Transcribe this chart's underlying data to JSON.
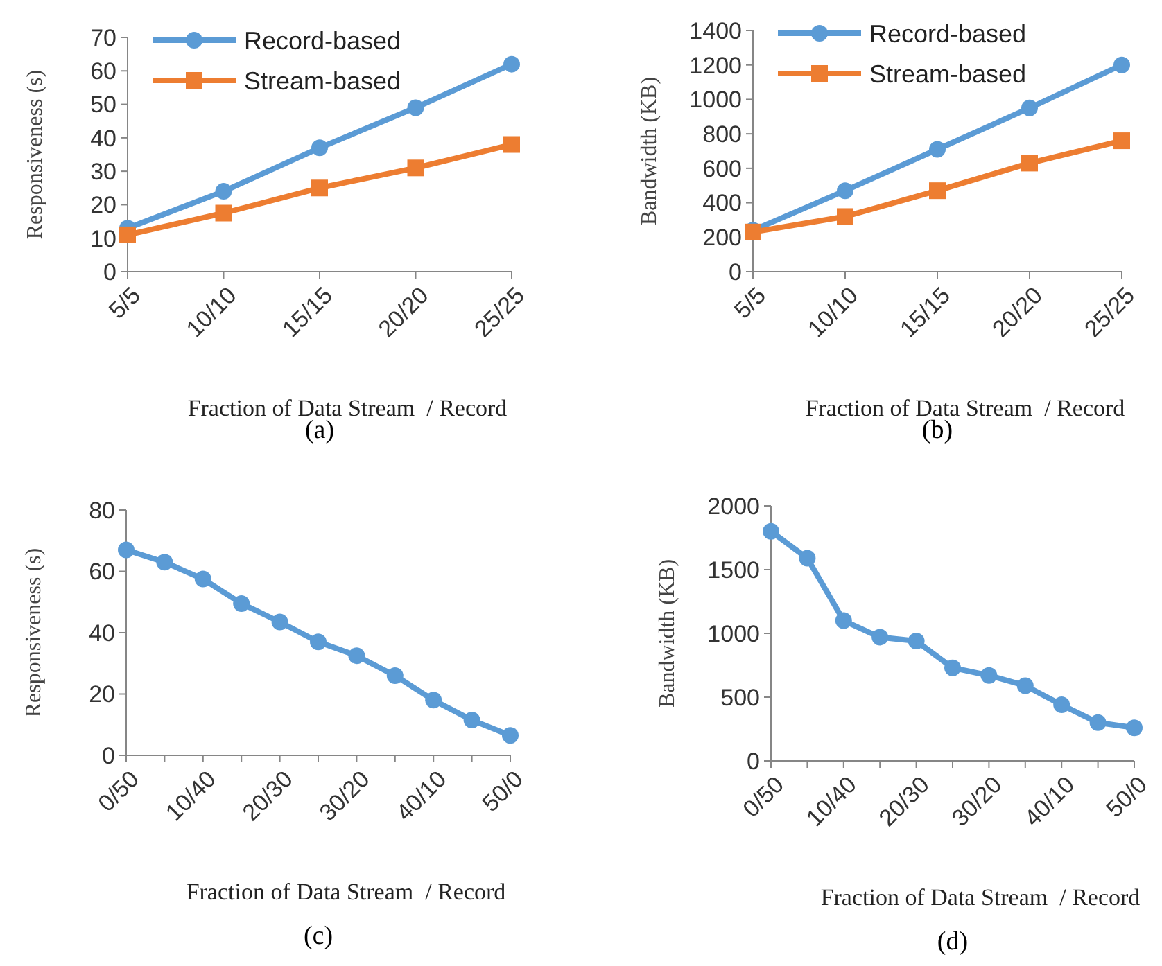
{
  "chart_data": [
    {
      "type": "line",
      "categories": [
        "5/5",
        "10/10",
        "15/15",
        "20/20",
        "25/25"
      ],
      "xlabel": "Fraction of Data Stream  / Record",
      "ylabel": "Responsiveness (s)",
      "ylim": [
        0,
        70
      ],
      "yticks": [
        0,
        10,
        20,
        30,
        40,
        50,
        60,
        70
      ],
      "grid": false,
      "legend": "top left",
      "annotations": [
        "(a)"
      ],
      "series": [
        {
          "name": "Record-based",
          "color": "#5b9bd5",
          "marker": "circle",
          "values": [
            13,
            24,
            37,
            49,
            62
          ]
        },
        {
          "name": "Stream-based",
          "color": "#ed7d31",
          "marker": "square",
          "values": [
            11,
            17.5,
            25,
            31,
            38
          ]
        }
      ]
    },
    {
      "type": "line",
      "categories": [
        "5/5",
        "10/10",
        "15/15",
        "20/20",
        "25/25"
      ],
      "xlabel": "Fraction of Data Stream  / Record",
      "ylabel": "Bandwidth (KB)",
      "ylim": [
        0,
        1400
      ],
      "yticks": [
        0,
        200,
        400,
        600,
        800,
        1000,
        1200,
        1400
      ],
      "grid": false,
      "legend": "top left",
      "annotations": [
        "(b)"
      ],
      "series": [
        {
          "name": "Record-based",
          "color": "#5b9bd5",
          "marker": "circle",
          "values": [
            240,
            470,
            710,
            950,
            1200
          ]
        },
        {
          "name": "Stream-based",
          "color": "#ed7d31",
          "marker": "square",
          "values": [
            230,
            320,
            470,
            630,
            760
          ]
        }
      ]
    },
    {
      "type": "line",
      "categories": [
        "0/50",
        null,
        "10/40",
        null,
        "20/30",
        null,
        "30/20",
        null,
        "40/10",
        null,
        "50/0"
      ],
      "xlabel": "Fraction of Data Stream  / Record",
      "ylabel": "Responsiveness (s)",
      "ylim": [
        0,
        80
      ],
      "yticks": [
        0,
        20,
        40,
        60,
        80
      ],
      "grid": false,
      "legend": false,
      "annotations": [
        "(c)"
      ],
      "series": [
        {
          "color": "#5b9bd5",
          "marker": "circle",
          "values": [
            67,
            63,
            57.5,
            49.5,
            43.5,
            37,
            32.5,
            26,
            18,
            11.5,
            6.5
          ]
        }
      ]
    },
    {
      "type": "line",
      "categories": [
        "0/50",
        null,
        "10/40",
        null,
        "20/30",
        null,
        "30/20",
        null,
        "40/10",
        null,
        "50/0"
      ],
      "xlabel": "Fraction of Data Stream  / Record",
      "ylabel": "Bandwidth (KB)",
      "ylim": [
        0,
        2000
      ],
      "yticks": [
        0,
        500,
        1000,
        1500,
        2000
      ],
      "grid": false,
      "legend": false,
      "annotations": [
        "(d)"
      ],
      "series": [
        {
          "color": "#5b9bd5",
          "marker": "circle",
          "values": [
            1800,
            1590,
            1100,
            970,
            940,
            730,
            670,
            590,
            440,
            300,
            260
          ]
        }
      ]
    }
  ]
}
